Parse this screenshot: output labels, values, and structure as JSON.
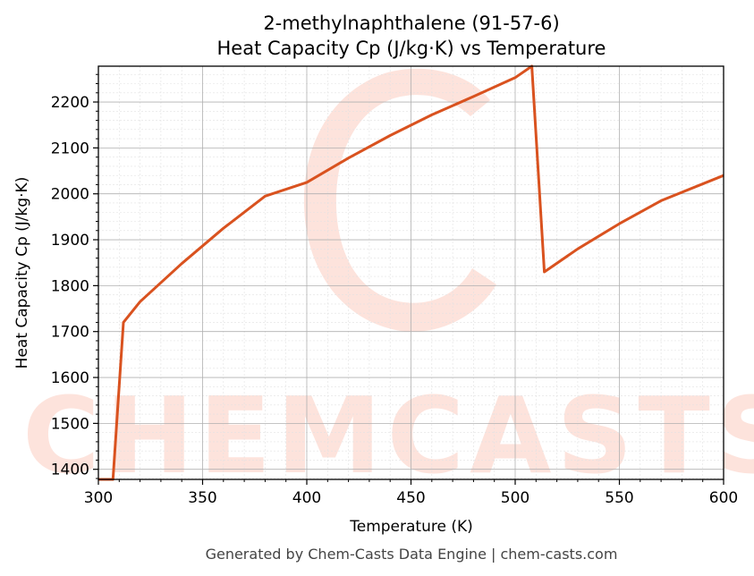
{
  "title_line1": "2-methylnaphthalene (91-57-6)",
  "title_line2": "Heat Capacity Cp (J/kg·K) vs Temperature",
  "footer": "Generated by Chem-Casts Data Engine | chem-casts.com",
  "watermark": "CHEMCASTS",
  "colors": {
    "line": "#d9521f",
    "watermark": "#fde3dc",
    "grid_major": "#b0b0b0",
    "grid_minor": "#e2e2e2"
  },
  "chart_data": {
    "type": "line",
    "title": "2-methylnaphthalene (91-57-6)\nHeat Capacity Cp (J/kg·K) vs Temperature",
    "xlabel": "Temperature (K)",
    "ylabel": "Heat Capacity Cp (J/kg·K)",
    "xlim": [
      300,
      600
    ],
    "ylim": [
      1378,
      2278
    ],
    "xticks": [
      300,
      350,
      400,
      450,
      500,
      550,
      600
    ],
    "yticks": [
      1400,
      1500,
      1600,
      1700,
      1800,
      1900,
      2000,
      2100,
      2200
    ],
    "grid": true,
    "series": [
      {
        "x": [
          300,
          307,
          312,
          320,
          340,
          360,
          380,
          400,
          420,
          440,
          460,
          480,
          500,
          508,
          514,
          530,
          550,
          570,
          600
        ],
        "y": [
          1378,
          1378,
          1720,
          1765,
          1848,
          1925,
          1995,
          2025,
          2078,
          2127,
          2172,
          2212,
          2253,
          2278,
          1830,
          1880,
          1935,
          1985,
          2040
        ]
      }
    ]
  }
}
